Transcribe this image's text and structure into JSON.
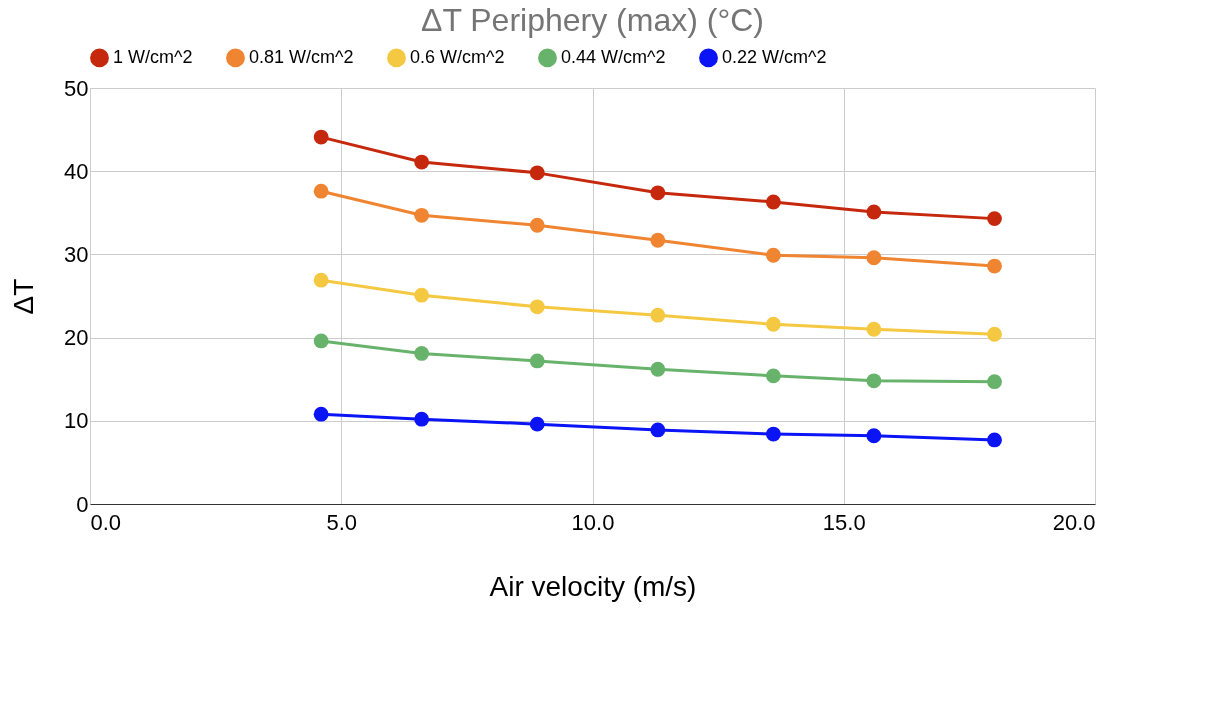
{
  "chart_data": {
    "type": "line",
    "title": "ΔT Periphery (max) (°C)",
    "xlabel": "Air velocity (m/s)",
    "ylabel": "ΔT",
    "x": [
      4.6,
      6.6,
      8.9,
      11.3,
      13.6,
      15.6,
      18.0
    ],
    "series": [
      {
        "name": "1 W/cm^2",
        "color": "#c5280c",
        "values": [
          44.1,
          41.1,
          39.8,
          37.4,
          36.3,
          35.1,
          34.3
        ]
      },
      {
        "name": "0.81 W/cm^2",
        "color": "#ef8431",
        "values": [
          37.6,
          34.7,
          33.5,
          31.7,
          29.9,
          29.6,
          28.6
        ]
      },
      {
        "name": "0.6 W/cm^2",
        "color": "#f5c842",
        "values": [
          26.9,
          25.1,
          23.7,
          22.7,
          21.6,
          21.0,
          20.4
        ]
      },
      {
        "name": "0.44 W/cm^2",
        "color": "#68b36b",
        "values": [
          19.6,
          18.1,
          17.2,
          16.2,
          15.4,
          14.8,
          14.7
        ]
      },
      {
        "name": "0.22 W/cm^2",
        "color": "#0a14f5",
        "values": [
          10.8,
          10.2,
          9.6,
          8.9,
          8.4,
          8.2,
          7.7
        ]
      }
    ],
    "xlim": [
      0,
      20
    ],
    "xticks": [
      {
        "value": 0,
        "label": "0.0"
      },
      {
        "value": 5,
        "label": "5.0"
      },
      {
        "value": 10,
        "label": "10.0"
      },
      {
        "value": 15,
        "label": "15.0"
      },
      {
        "value": 20,
        "label": "20.0"
      }
    ],
    "ylim": [
      0,
      50
    ],
    "yticks": [
      0,
      10,
      20,
      30,
      40,
      50
    ],
    "grid": true,
    "legend": "top",
    "marker": "circle",
    "line_style": "solid"
  }
}
